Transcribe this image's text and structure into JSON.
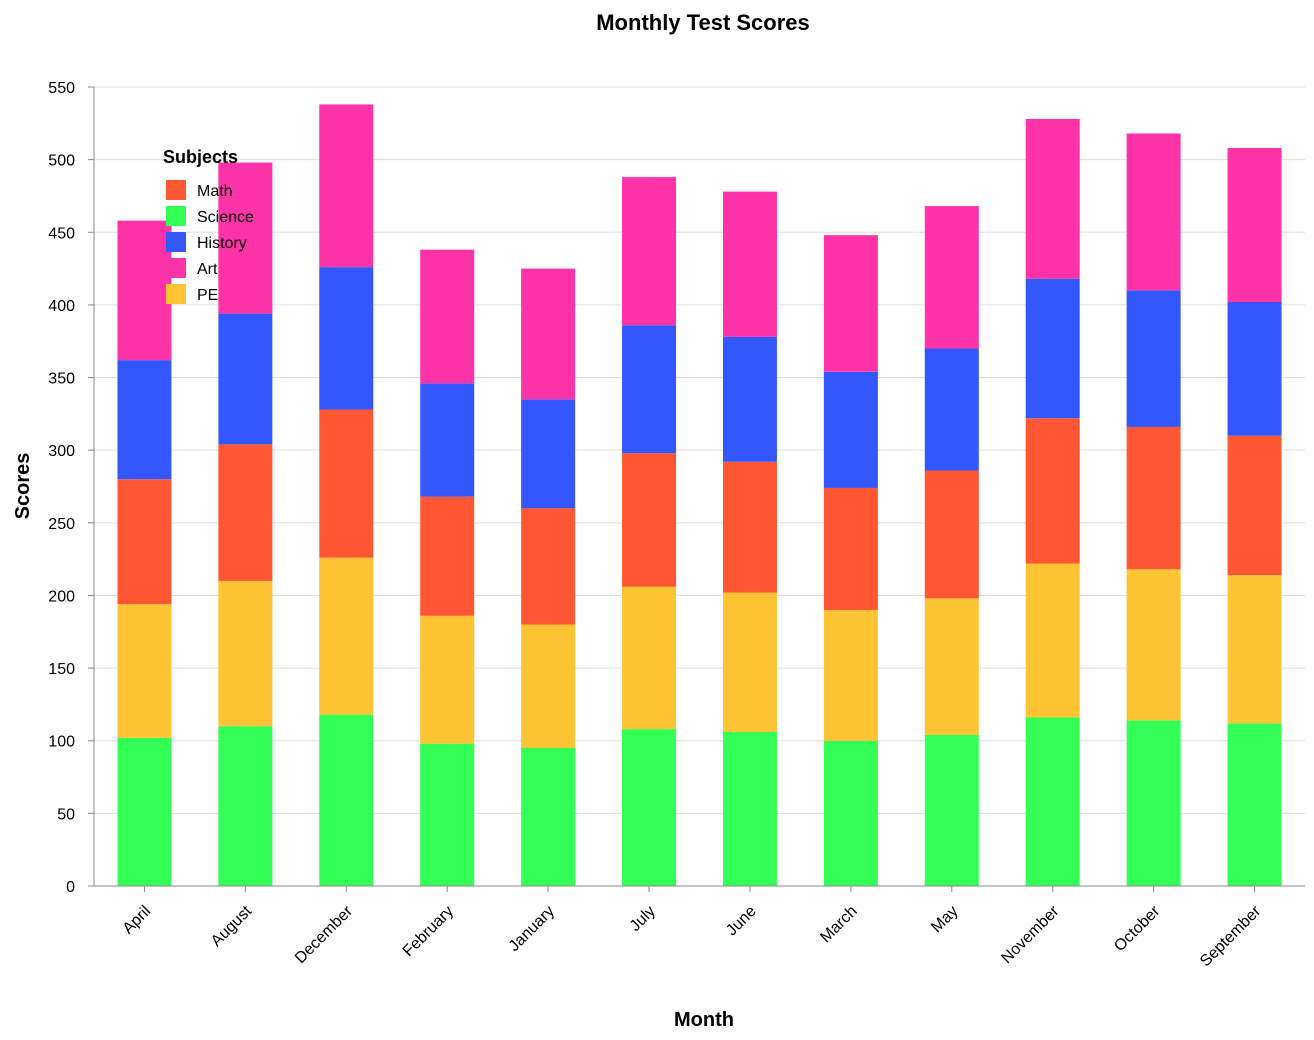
{
  "chart_data": {
    "type": "bar",
    "stacked": true,
    "title": "Monthly Test Scores",
    "xlabel": "Month",
    "ylabel": "Scores",
    "ylim": [
      0,
      550
    ],
    "yticks": [
      0,
      50,
      100,
      150,
      200,
      250,
      300,
      350,
      400,
      450,
      500,
      550
    ],
    "grid": true,
    "legend_title": "Subjects",
    "legend_position": "top-left",
    "categories": [
      "April",
      "August",
      "December",
      "February",
      "January",
      "July",
      "June",
      "March",
      "May",
      "November",
      "October",
      "September"
    ],
    "legend_order": [
      "Math",
      "Science",
      "History",
      "Art",
      "PE"
    ],
    "stack_order": [
      "Science",
      "PE",
      "Math",
      "History",
      "Art"
    ],
    "series": [
      {
        "name": "Math",
        "color": "#ff5733",
        "values": [
          86,
          94,
          102,
          82,
          80,
          92,
          90,
          84,
          88,
          100,
          98,
          96
        ]
      },
      {
        "name": "Science",
        "color": "#33ff57",
        "values": [
          102,
          110,
          118,
          98,
          95,
          108,
          106,
          100,
          104,
          116,
          114,
          112
        ]
      },
      {
        "name": "History",
        "color": "#3357ff",
        "values": [
          82,
          90,
          98,
          78,
          75,
          88,
          86,
          80,
          84,
          96,
          94,
          92
        ]
      },
      {
        "name": "Art",
        "color": "#ff33a8",
        "values": [
          96,
          104,
          112,
          92,
          90,
          102,
          100,
          94,
          98,
          110,
          108,
          106
        ]
      },
      {
        "name": "PE",
        "color": "#ffc433",
        "values": [
          92,
          100,
          108,
          88,
          85,
          98,
          96,
          90,
          94,
          106,
          104,
          102
        ]
      }
    ]
  }
}
